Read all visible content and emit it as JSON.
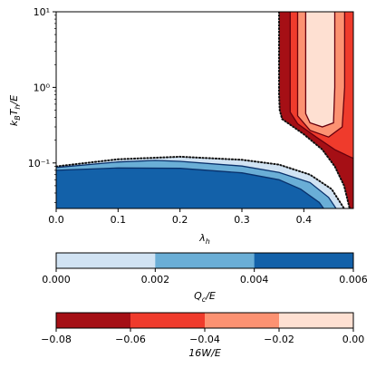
{
  "chart_data": {
    "type": "contour",
    "xlabel": "λ_h",
    "ylabel": "k_B T_h/E",
    "xlim": [
      0.0,
      0.48
    ],
    "ylim": [
      0.025,
      10
    ],
    "yscale": "log",
    "xticks": [
      0.0,
      0.1,
      0.2,
      0.3,
      0.4
    ],
    "xtick_labels": [
      "0.0",
      "0.1",
      "0.2",
      "0.3",
      "0.4"
    ],
    "yticks": [
      0.1,
      1,
      10
    ],
    "ytick_labels": [
      "10⁻¹",
      "10⁰",
      "10¹"
    ],
    "cooling_levels_Qc_over_E": [
      {
        "range": [
          0.0,
          0.002
        ],
        "color": "#d1e3f3"
      },
      {
        "range": [
          0.002,
          0.004
        ],
        "color": "#6aaed6"
      },
      {
        "range": [
          0.004,
          0.006
        ],
        "color": "#1361a9"
      }
    ],
    "cooling_contours": [
      {
        "level": 0.0,
        "style": "dotted",
        "points": [
          [
            0.0,
            0.09
          ],
          [
            0.1,
            0.112
          ],
          [
            0.2,
            0.121
          ],
          [
            0.3,
            0.11
          ],
          [
            0.36,
            0.095
          ],
          [
            0.41,
            0.07
          ],
          [
            0.445,
            0.045
          ],
          [
            0.465,
            0.025
          ]
        ]
      },
      {
        "level": 0.002,
        "style": "solid",
        "points": [
          [
            0.0,
            0.087
          ],
          [
            0.1,
            0.103
          ],
          [
            0.16,
            0.108
          ],
          [
            0.2,
            0.105
          ],
          [
            0.3,
            0.091
          ],
          [
            0.36,
            0.075
          ],
          [
            0.41,
            0.055
          ],
          [
            0.44,
            0.035
          ],
          [
            0.452,
            0.025
          ]
        ]
      },
      {
        "level": 0.004,
        "style": "solid",
        "points": [
          [
            0.0,
            0.08
          ],
          [
            0.1,
            0.086
          ],
          [
            0.2,
            0.085
          ],
          [
            0.3,
            0.074
          ],
          [
            0.36,
            0.06
          ],
          [
            0.395,
            0.045
          ],
          [
            0.425,
            0.03
          ],
          [
            0.432,
            0.025
          ]
        ]
      }
    ],
    "work_levels_16W_over_E": [
      {
        "range": [
          -0.08,
          -0.06
        ],
        "color": "#a50f15"
      },
      {
        "range": [
          -0.06,
          -0.04
        ],
        "color": "#ef3b2c"
      },
      {
        "range": [
          -0.04,
          -0.02
        ],
        "color": "#fc9272"
      },
      {
        "range": [
          -0.02,
          0.0
        ],
        "color": "#fee0d2"
      }
    ],
    "work_contours": [
      {
        "level": 0.0,
        "style": "dotted",
        "points": [
          [
            0.36,
            10
          ],
          [
            0.36,
            0.82
          ],
          [
            0.361,
            0.5
          ],
          [
            0.365,
            0.38
          ],
          [
            0.4,
            0.24
          ],
          [
            0.43,
            0.15
          ],
          [
            0.45,
            0.09
          ],
          [
            0.465,
            0.05
          ],
          [
            0.474,
            0.025
          ]
        ]
      },
      {
        "level": -0.02,
        "style": "solid",
        "points": [
          [
            0.378,
            10
          ],
          [
            0.378,
            0.47
          ],
          [
            0.39,
            0.33
          ],
          [
            0.42,
            0.22
          ],
          [
            0.45,
            0.15
          ],
          [
            0.475,
            0.12
          ],
          [
            0.48,
            0.115
          ]
        ]
      },
      {
        "level": -0.04,
        "style": "solid",
        "points": [
          [
            0.39,
            10
          ],
          [
            0.39,
            0.42
          ],
          [
            0.41,
            0.27
          ],
          [
            0.44,
            0.22
          ],
          [
            0.462,
            0.3
          ],
          [
            0.466,
            1
          ],
          [
            0.466,
            10
          ]
        ]
      },
      {
        "level": -0.06,
        "style": "solid",
        "points": [
          [
            0.403,
            10
          ],
          [
            0.403,
            0.45
          ],
          [
            0.41,
            0.34
          ],
          [
            0.43,
            0.3
          ],
          [
            0.448,
            0.34
          ],
          [
            0.45,
            1
          ],
          [
            0.45,
            10
          ]
        ]
      }
    ],
    "colorbars": [
      {
        "label": "Q_c/E",
        "ticks": [
          "0.000",
          "0.002",
          "0.004",
          "0.006"
        ]
      },
      {
        "label": "16W/E",
        "ticks": [
          "−0.08",
          "−0.06",
          "−0.04",
          "−0.02",
          "0.00"
        ]
      }
    ]
  }
}
